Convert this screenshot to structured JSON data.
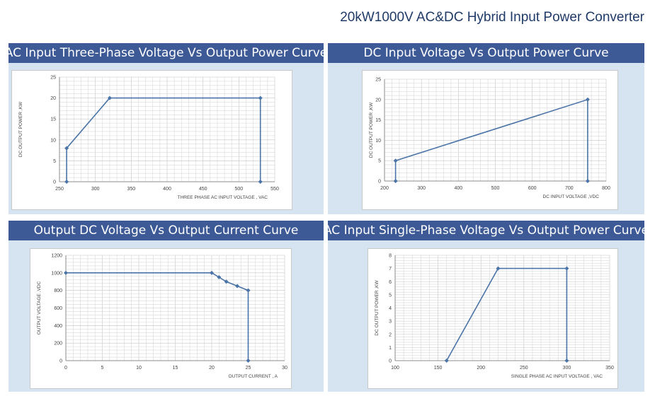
{
  "page_title": "20kW1000V AC&DC Hybrid Input Power Converter",
  "colors": {
    "header_bg": "#3d5a97",
    "panel_bg": "#d6e4f1",
    "line": "#4a74a8",
    "grid": "#d9d9d9"
  },
  "chart_data": [
    {
      "type": "line",
      "title": "AC Input Three-Phase Voltage Vs Output Power Curve",
      "xlabel": "THREE PHASE AC INPUT VOLTAGE , VAC",
      "ylabel": "DC OUTPUT POWER ,KW",
      "xlim": [
        250,
        550
      ],
      "ylim": [
        0,
        25
      ],
      "xticks": [
        "250",
        "300",
        "350",
        "400",
        "450",
        "500",
        "550"
      ],
      "yticks": [
        "0",
        "5",
        "10",
        "15",
        "20",
        "25"
      ],
      "grid": true,
      "x": [
        260,
        260,
        320,
        530,
        530
      ],
      "y": [
        0,
        8,
        20,
        20,
        0
      ]
    },
    {
      "type": "line",
      "title": "DC Input Voltage Vs Output Power Curve",
      "xlabel": "DC INPUT VOLTAGE ,VDC",
      "ylabel": "DC OUTPUT POWER ,KW",
      "xlim": [
        200,
        800
      ],
      "ylim": [
        0,
        25
      ],
      "xticks": [
        "200",
        "300",
        "400",
        "500",
        "600",
        "700",
        "800"
      ],
      "yticks": [
        "0",
        "5",
        "10",
        "15",
        "20",
        "25"
      ],
      "grid": true,
      "x": [
        230,
        230,
        750,
        750
      ],
      "y": [
        0,
        5,
        20,
        0
      ]
    },
    {
      "type": "line",
      "title": "Output DC Voltage Vs Output Current Curve",
      "xlabel": "OUTPUT CURRENT , A",
      "ylabel": "OUTPUT VOLTAGE ,VDC",
      "xlim": [
        0,
        30
      ],
      "ylim": [
        0,
        1200
      ],
      "xticks": [
        "0",
        "5",
        "10",
        "15",
        "20",
        "25",
        "30"
      ],
      "yticks": [
        "0",
        "200",
        "400",
        "600",
        "800",
        "1000",
        "1200"
      ],
      "grid": true,
      "x": [
        0,
        20,
        21,
        22,
        23.5,
        25,
        25
      ],
      "y": [
        1000,
        1000,
        950,
        900,
        850,
        800,
        0
      ]
    },
    {
      "type": "line",
      "title": "AC Input Single-Phase Voltage Vs Output Power Curve",
      "xlabel": "SINGLE PHASE AC INPUT VOLTAGE , VAC",
      "ylabel": "DC OUTPUT POWER ,KW",
      "xlim": [
        100,
        350
      ],
      "ylim": [
        0,
        8
      ],
      "xticks": [
        "100",
        "150",
        "200",
        "250",
        "300",
        "350"
      ],
      "yticks": [
        "0",
        "1",
        "2",
        "3",
        "4",
        "5",
        "6",
        "7",
        "8"
      ],
      "grid": true,
      "x": [
        160,
        220,
        300,
        300
      ],
      "y": [
        0,
        7,
        7,
        0
      ]
    }
  ]
}
